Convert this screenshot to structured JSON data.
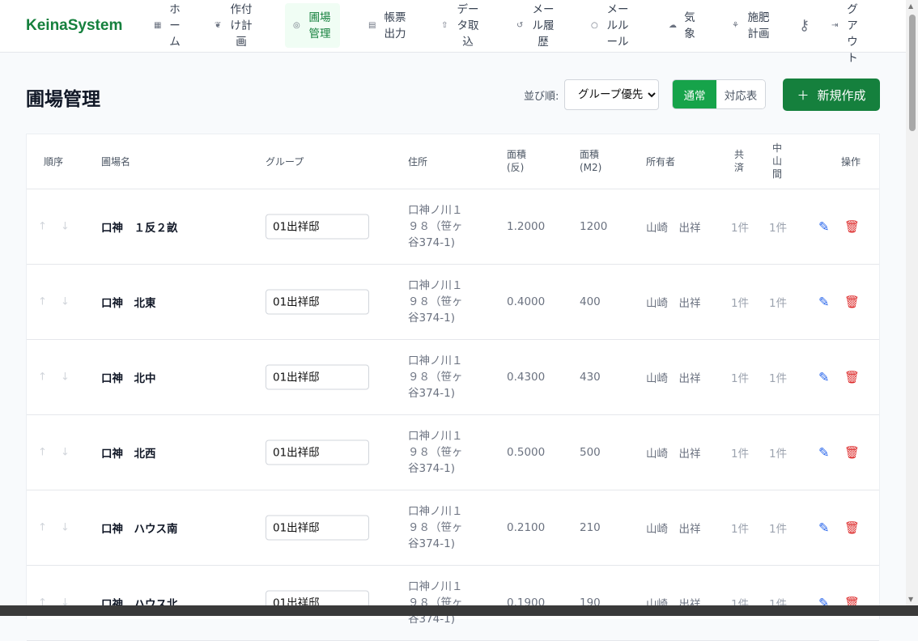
{
  "brand": "KeinaSystem",
  "nav": [
    {
      "label": "ホーム",
      "icon": "grid-icon"
    },
    {
      "label": "作付け計画",
      "icon": "leaf-icon"
    },
    {
      "label": "圃場管理",
      "icon": "map-pin-icon",
      "active": true
    },
    {
      "label": "帳票出力",
      "icon": "file-icon"
    },
    {
      "label": "データ取込",
      "icon": "upload-icon"
    },
    {
      "label": "メール履歴",
      "icon": "history-icon"
    },
    {
      "label": "メールルール",
      "icon": "circle-icon"
    },
    {
      "label": "気象",
      "icon": "cloud-icon"
    },
    {
      "label": "施肥計画",
      "icon": "sprout-icon"
    },
    {
      "label": "",
      "icon": "key-icon"
    },
    {
      "label": "ログアウト",
      "icon": "logout-icon"
    }
  ],
  "page": {
    "title": "圃場管理",
    "sort_label": "並び順:",
    "sort_value": "グループ優先",
    "view_normal": "通常",
    "view_table": "対応表",
    "new_button": "新規作成"
  },
  "table": {
    "headers": {
      "order": "順序",
      "name": "圃場名",
      "group": "グループ",
      "address": "住所",
      "area_tan": "面積\n(反)",
      "area_m2": "面積\n(M2)",
      "owner": "所有者",
      "kyosai": "共\n済",
      "chusankan": "中\n山\n間",
      "actions": "操作"
    },
    "rows": [
      {
        "name": "口神　１反２畝",
        "group": "01出祥邸",
        "address": "口神ノ川１９８（笹ヶ谷374-1)",
        "area_tan": "1.2000",
        "area_m2": "1200",
        "owner": "山崎　出祥",
        "kyosai": "1件",
        "chusankan": "1件"
      },
      {
        "name": "口神　北東",
        "group": "01出祥邸",
        "address": "口神ノ川１９８（笹ヶ谷374-1)",
        "area_tan": "0.4000",
        "area_m2": "400",
        "owner": "山崎　出祥",
        "kyosai": "1件",
        "chusankan": "1件"
      },
      {
        "name": "口神　北中",
        "group": "01出祥邸",
        "address": "口神ノ川１９８（笹ヶ谷374-1)",
        "area_tan": "0.4300",
        "area_m2": "430",
        "owner": "山崎　出祥",
        "kyosai": "1件",
        "chusankan": "1件"
      },
      {
        "name": "口神　北西",
        "group": "01出祥邸",
        "address": "口神ノ川１９８（笹ヶ谷374-1)",
        "area_tan": "0.5000",
        "area_m2": "500",
        "owner": "山崎　出祥",
        "kyosai": "1件",
        "chusankan": "1件"
      },
      {
        "name": "口神　ハウス南",
        "group": "01出祥邸",
        "address": "口神ノ川１９８（笹ヶ谷374-1)",
        "area_tan": "0.2100",
        "area_m2": "210",
        "owner": "山崎　出祥",
        "kyosai": "1件",
        "chusankan": "1件"
      },
      {
        "name": "口神　ハウス北",
        "group": "01出祥邸",
        "address": "口神ノ川１９８（笹ヶ谷374-1)",
        "area_tan": "0.1900",
        "area_m2": "190",
        "owner": "山崎　出祥",
        "kyosai": "1件",
        "chusankan": "1件"
      }
    ]
  }
}
